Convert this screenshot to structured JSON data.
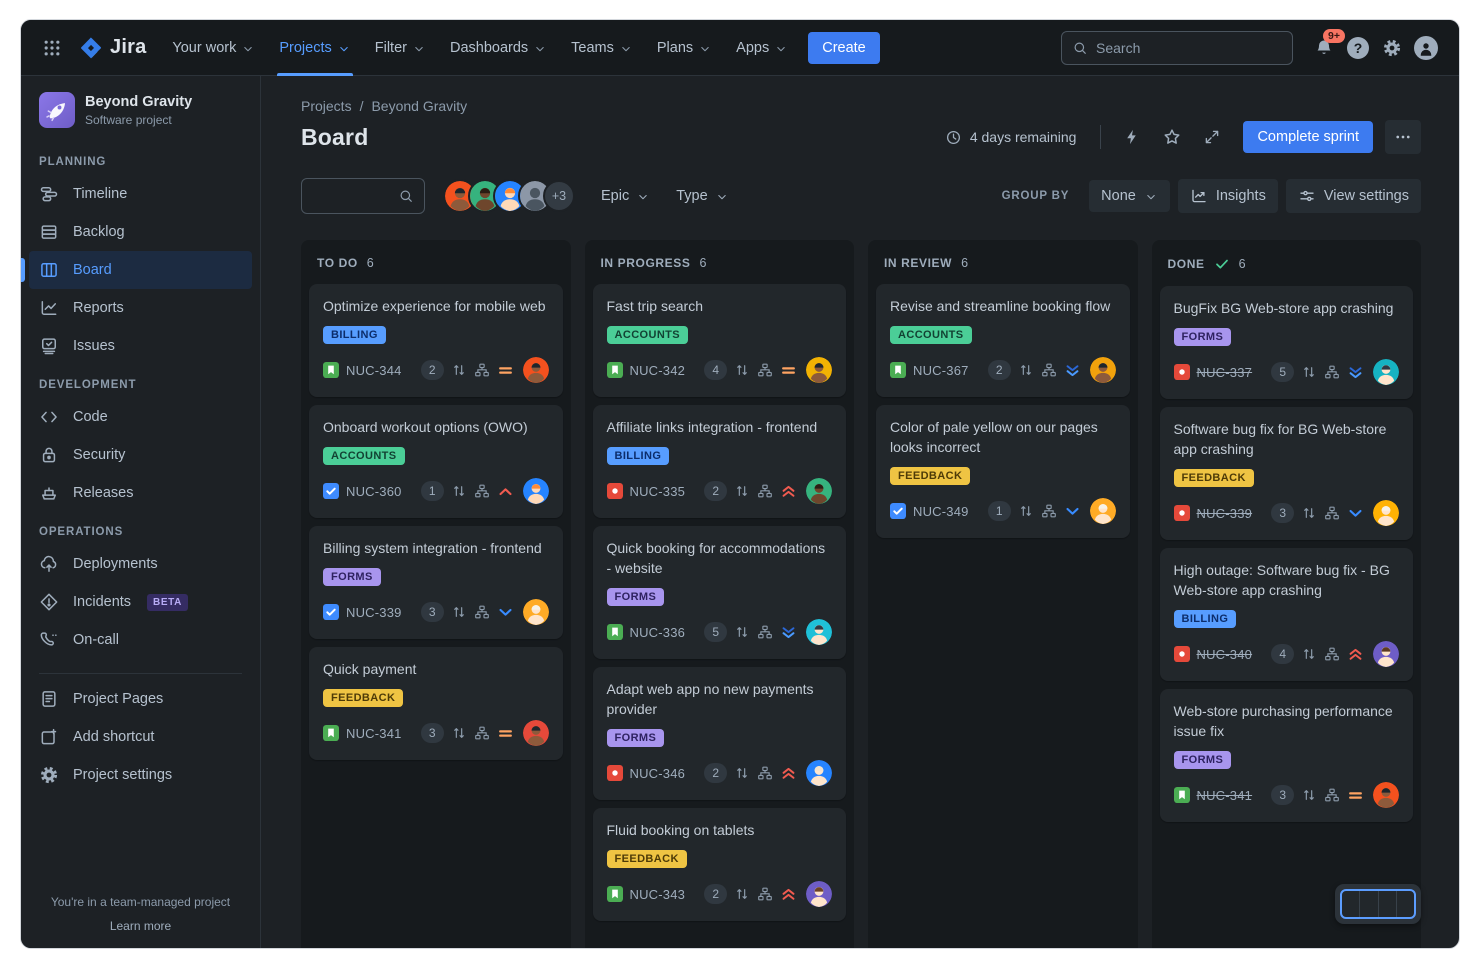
{
  "nav": {
    "logo_text": "Jira",
    "items": [
      "Your work",
      "Projects",
      "Filter",
      "Dashboards",
      "Teams",
      "Plans",
      "Apps"
    ],
    "active_item": "Projects",
    "create_label": "Create",
    "search_placeholder": "Search",
    "notification_badge": "9+"
  },
  "sidebar": {
    "project_name": "Beyond Gravity",
    "project_type": "Software project",
    "sections": [
      {
        "title": "PLANNING",
        "items": [
          {
            "label": "Timeline",
            "icon": "timeline"
          },
          {
            "label": "Backlog",
            "icon": "backlog"
          },
          {
            "label": "Board",
            "icon": "board",
            "active": true
          },
          {
            "label": "Reports",
            "icon": "reports"
          },
          {
            "label": "Issues",
            "icon": "issues"
          }
        ]
      },
      {
        "title": "DEVELOPMENT",
        "items": [
          {
            "label": "Code",
            "icon": "code"
          },
          {
            "label": "Security",
            "icon": "security"
          },
          {
            "label": "Releases",
            "icon": "releases"
          }
        ]
      },
      {
        "title": "OPERATIONS",
        "items": [
          {
            "label": "Deployments",
            "icon": "deployments"
          },
          {
            "label": "Incidents",
            "icon": "incidents",
            "badge": "BETA"
          },
          {
            "label": "On-call",
            "icon": "oncall"
          }
        ]
      }
    ],
    "footer_items": [
      "Project Pages",
      "Add shortcut",
      "Project settings"
    ],
    "footer_note": "You're in a team-managed project",
    "footer_link": "Learn more"
  },
  "header": {
    "breadcrumb": [
      "Projects",
      "Beyond Gravity"
    ],
    "title": "Board",
    "sprint_status": "4 days remaining",
    "complete_sprint_label": "Complete sprint"
  },
  "filters": {
    "group_by_label": "GROUP BY",
    "group_by_value": "None",
    "epic_label": "Epic",
    "type_label": "Type",
    "insights_label": "Insights",
    "view_settings_label": "View settings",
    "extra_avatars": "+3",
    "avatars": [
      {
        "bg": "#F4511E",
        "skin": "#8D5A3B",
        "hair": "#1F262C"
      },
      {
        "bg": "#36B37E",
        "skin": "#6E462C",
        "hair": "#2A1E14"
      },
      {
        "bg": "#2684FF",
        "skin": "#FFD9B8",
        "hair": "#FF8B37"
      },
      {
        "bg": "#8C97A7",
        "skin": "#4A5560",
        "hair": null
      }
    ]
  },
  "epics": {
    "BILLING": {
      "bg": "#579DFF",
      "fg": "#0C2D6B"
    },
    "ACCOUNTS": {
      "bg": "#4BCE97",
      "fg": "#124233"
    },
    "FORMS": {
      "bg": "#A895EE",
      "fg": "#2E2260"
    },
    "FEEDBACK": {
      "bg": "#EFC443",
      "fg": "#4E3B07"
    }
  },
  "board": {
    "columns": [
      {
        "name": "TO DO",
        "count": 6,
        "done": false,
        "cards": [
          {
            "title": "Optimize experience for mobile web",
            "epic": "BILLING",
            "type": "story",
            "key": "NUC-344",
            "estimate": "2",
            "priority": "medium",
            "avatar": {
              "bg": "#F4511E",
              "skin": "#8D5A3B",
              "hair": "#1F262C"
            }
          },
          {
            "title": "Onboard workout options (OWO)",
            "epic": "ACCOUNTS",
            "type": "task",
            "key": "NUC-360",
            "estimate": "1",
            "priority": "high",
            "avatar": {
              "bg": "#2684FF",
              "skin": "#FFD9B8",
              "hair": "#FF8B37"
            }
          },
          {
            "title": "Billing system integration - frontend",
            "epic": "FORMS",
            "type": "task",
            "key": "NUC-339",
            "estimate": "3",
            "priority": "low",
            "avatar": {
              "bg": "#FFAB26",
              "skin": "#FFE5CC",
              "hair": "#F7F3E8"
            }
          },
          {
            "title": "Quick payment",
            "epic": "FEEDBACK",
            "type": "story",
            "key": "NUC-341",
            "estimate": "3",
            "priority": "medium",
            "avatar": {
              "bg": "#E5493A",
              "skin": "#8D5A3B",
              "hair": "#1F262C"
            }
          }
        ]
      },
      {
        "name": "IN PROGRESS",
        "count": 6,
        "done": false,
        "cards": [
          {
            "title": "Fast trip search",
            "epic": "ACCOUNTS",
            "type": "story",
            "key": "NUC-342",
            "estimate": "4",
            "priority": "medium",
            "avatar": {
              "bg": "#F2B203",
              "skin": "#8D5A3B",
              "hair": "#1F262C"
            }
          },
          {
            "title": "Affiliate links integration - frontend",
            "epic": "BILLING",
            "type": "bug",
            "key": "NUC-335",
            "estimate": "2",
            "priority": "highest",
            "avatar": {
              "bg": "#36B37E",
              "skin": "#6E462C",
              "hair": "#2A1E14"
            }
          },
          {
            "title": "Quick booking for accommodations - website",
            "epic": "FORMS",
            "type": "story",
            "key": "NUC-336",
            "estimate": "5",
            "priority": "lowest",
            "avatar": {
              "bg": "#1FC0D8",
              "skin": "#FFE5CC",
              "hair": "#2E3A45"
            }
          },
          {
            "title": "Adapt web app no new payments provider",
            "epic": "FORMS",
            "type": "bug",
            "key": "NUC-346",
            "estimate": "2",
            "priority": "highest",
            "avatar": {
              "bg": "#2684FF",
              "skin": "#FFE5CC",
              "hair": "#F2E4CF"
            }
          },
          {
            "title": "Fluid booking on tablets",
            "epic": "FEEDBACK",
            "type": "story",
            "key": "NUC-343",
            "estimate": "2",
            "priority": "highest",
            "avatar": {
              "bg": "#6E5DC6",
              "skin": "#FFE5CC",
              "hair": "#6B4226"
            }
          }
        ]
      },
      {
        "name": "IN REVIEW",
        "count": 6,
        "done": false,
        "cards": [
          {
            "title": "Revise and streamline booking flow",
            "epic": "ACCOUNTS",
            "type": "story",
            "key": "NUC-367",
            "estimate": "2",
            "priority": "lowest",
            "avatar": {
              "bg": "#F2A20C",
              "skin": "#8D5A3B",
              "hair": "#1F262C"
            }
          },
          {
            "title": "Color of pale yellow on our pages looks incorrect",
            "epic": "FEEDBACK",
            "type": "task",
            "key": "NUC-349",
            "estimate": "1",
            "priority": "low",
            "avatar": {
              "bg": "#FFAB26",
              "skin": "#FFE5CC",
              "hair": "#F7F3E8"
            }
          }
        ]
      },
      {
        "name": "DONE",
        "count": 6,
        "done": true,
        "cards": [
          {
            "title": "BugFix BG Web-store app crashing",
            "epic": "FORMS",
            "type": "bug",
            "key": "NUC-337",
            "estimate": "5",
            "priority": "lowest",
            "done": true,
            "avatar": {
              "bg": "#16B3C2",
              "skin": "#FFE5CC",
              "hair": "#2E3A45"
            }
          },
          {
            "title": "Software bug fix for BG Web-store app crashing",
            "epic": "FEEDBACK",
            "type": "bug",
            "key": "NUC-339",
            "estimate": "3",
            "priority": "low",
            "done": true,
            "avatar": {
              "bg": "#FFB203",
              "skin": "#FFE5CC",
              "hair": "#F7F3E8"
            }
          },
          {
            "title": "High outage: Software bug fix - BG Web-store app crashing",
            "epic": "BILLING",
            "type": "bug",
            "key": "NUC-340",
            "estimate": "4",
            "priority": "highest",
            "done": true,
            "avatar": {
              "bg": "#6E5DC6",
              "skin": "#FFE5CC",
              "hair": "#5C3A21"
            }
          },
          {
            "title": "Web-store purchasing performance issue fix",
            "epic": "FORMS",
            "type": "story",
            "key": "NUC-341",
            "estimate": "3",
            "priority": "medium",
            "done": true,
            "avatar": {
              "bg": "#F4511E",
              "skin": "#8D5A3B",
              "hair": "#1F262C"
            }
          }
        ]
      }
    ]
  }
}
